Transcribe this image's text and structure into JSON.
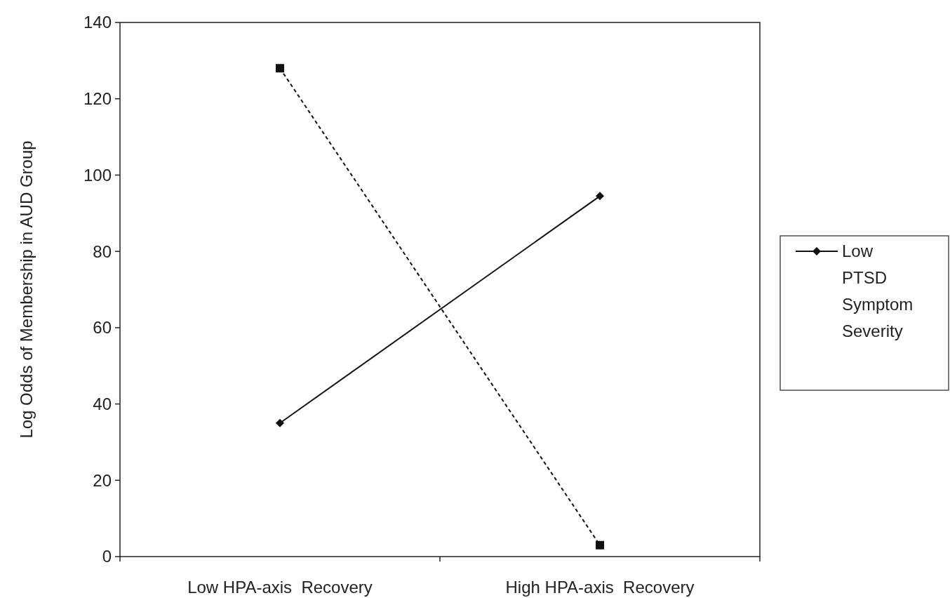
{
  "chart_data": {
    "type": "line",
    "ylabel": "Log Odds of Membership in AUD Group",
    "categories": [
      "Low HPA-axis  Recovery",
      "High HPA-axis  Recovery"
    ],
    "ylim": [
      0,
      140
    ],
    "yticks": [
      0,
      20,
      40,
      60,
      80,
      100,
      120,
      140
    ],
    "grid": false,
    "legend": "right",
    "series": [
      {
        "name": "Low PTSD Symptom Severity",
        "color": "#111111",
        "values": [
          35,
          94.5
        ],
        "marker": "diamond",
        "line_style": "solid"
      },
      {
        "color": "#111111",
        "values": [
          128,
          3
        ],
        "marker": "square",
        "line_style": "dashed"
      }
    ]
  }
}
